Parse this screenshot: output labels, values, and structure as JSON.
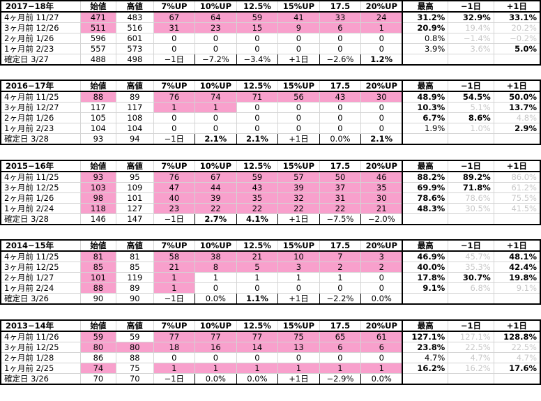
{
  "columns": [
    "始値",
    "高値",
    "7%UP",
    "10%UP",
    "12.5%",
    "15%UP",
    "17.5",
    "20%UP",
    "最高",
    "−1日",
    "+1日"
  ],
  "blocks": [
    {
      "year": "2017−18年",
      "rows": [
        {
          "label": "4ヶ月前",
          "date": "11/27",
          "cells": [
            "471",
            "483",
            "67",
            "64",
            "59",
            "41",
            "33",
            "24",
            "31.2%",
            "32.9%",
            "33.1%"
          ]
        },
        {
          "label": "3ヶ月前",
          "date": "12/26",
          "cells": [
            "511",
            "516",
            "31",
            "23",
            "15",
            "9",
            "6",
            "1",
            "20.9%",
            "19.4%",
            "20.2%"
          ]
        },
        {
          "label": "2ヶ月前",
          "date": "1/26",
          "cells": [
            "596",
            "601",
            "0",
            "0",
            "0",
            "0",
            "0",
            "0",
            "0.8%",
            "−1.4%",
            "−0.2%"
          ]
        },
        {
          "label": "1ヶ月前",
          "date": "2/23",
          "cells": [
            "557",
            "573",
            "0",
            "0",
            "0",
            "0",
            "0",
            "0",
            "3.9%",
            "3.6%",
            "5.0%"
          ]
        },
        {
          "label": "確定日",
          "date": "3/27",
          "cells": [
            "488",
            "498",
            "−1日",
            "−7.2%",
            "−3.4%",
            "+1日",
            "−2.6%",
            "1.2%",
            "",
            "",
            ""
          ]
        }
      ]
    },
    {
      "year": "2016−17年",
      "rows": [
        {
          "label": "4ヶ月前",
          "date": "11/25",
          "cells": [
            "88",
            "89",
            "76",
            "74",
            "71",
            "56",
            "43",
            "30",
            "48.9%",
            "54.5%",
            "50.0%"
          ]
        },
        {
          "label": "3ヶ月前",
          "date": "12/27",
          "cells": [
            "117",
            "117",
            "1",
            "1",
            "0",
            "0",
            "0",
            "0",
            "10.3%",
            "5.1%",
            "13.7%"
          ]
        },
        {
          "label": "2ヶ月前",
          "date": "1/26",
          "cells": [
            "105",
            "108",
            "0",
            "0",
            "0",
            "0",
            "0",
            "0",
            "6.7%",
            "8.6%",
            "4.8%"
          ]
        },
        {
          "label": "1ヶ月前",
          "date": "2/23",
          "cells": [
            "104",
            "104",
            "0",
            "0",
            "0",
            "0",
            "0",
            "0",
            "1.9%",
            "1.0%",
            "2.9%"
          ]
        },
        {
          "label": "確定日",
          "date": "3/28",
          "cells": [
            "93",
            "94",
            "−1日",
            "2.1%",
            "2.1%",
            "+1日",
            "0.0%",
            "2.1%",
            "",
            "",
            ""
          ]
        }
      ]
    },
    {
      "year": "2015−16年",
      "rows": [
        {
          "label": "4ヶ月前",
          "date": "11/25",
          "cells": [
            "93",
            "95",
            "76",
            "67",
            "59",
            "57",
            "50",
            "46",
            "88.2%",
            "89.2%",
            "86.0%"
          ]
        },
        {
          "label": "3ヶ月前",
          "date": "12/25",
          "cells": [
            "103",
            "109",
            "47",
            "44",
            "43",
            "39",
            "37",
            "35",
            "69.9%",
            "71.8%",
            "61.2%"
          ]
        },
        {
          "label": "2ヶ月前",
          "date": "1/26",
          "cells": [
            "98",
            "101",
            "40",
            "39",
            "35",
            "32",
            "31",
            "30",
            "78.6%",
            "78.6%",
            "75.5%"
          ]
        },
        {
          "label": "1ヶ月前",
          "date": "2/24",
          "cells": [
            "118",
            "127",
            "23",
            "22",
            "22",
            "22",
            "22",
            "21",
            "48.3%",
            "30.5%",
            "41.5%"
          ]
        },
        {
          "label": "確定日",
          "date": "3/28",
          "cells": [
            "146",
            "147",
            "−1日",
            "2.7%",
            "4.1%",
            "+1日",
            "−7.5%",
            "−2.0%",
            "",
            "",
            ""
          ]
        }
      ]
    },
    {
      "year": "2014−15年",
      "rows": [
        {
          "label": "4ヶ月前",
          "date": "11/25",
          "cells": [
            "81",
            "81",
            "58",
            "38",
            "21",
            "10",
            "7",
            "3",
            "46.9%",
            "45.7%",
            "48.1%"
          ]
        },
        {
          "label": "3ヶ月前",
          "date": "12/25",
          "cells": [
            "85",
            "85",
            "21",
            "8",
            "5",
            "3",
            "2",
            "2",
            "40.0%",
            "35.3%",
            "42.4%"
          ]
        },
        {
          "label": "2ヶ月前",
          "date": "1/27",
          "cells": [
            "101",
            "119",
            "1",
            "1",
            "1",
            "1",
            "1",
            "0",
            "17.8%",
            "30.7%",
            "19.8%"
          ]
        },
        {
          "label": "1ヶ月前",
          "date": "2/24",
          "cells": [
            "88",
            "89",
            "1",
            "0",
            "0",
            "0",
            "0",
            "0",
            "9.1%",
            "6.8%",
            "9.1%"
          ]
        },
        {
          "label": "確定日",
          "date": "3/26",
          "cells": [
            "90",
            "90",
            "−1日",
            "0.0%",
            "1.1%",
            "+1日",
            "−2.2%",
            "0.0%",
            "",
            "",
            ""
          ]
        }
      ]
    },
    {
      "year": "2013−14年",
      "rows": [
        {
          "label": "4ヶ月前",
          "date": "11/26",
          "cells": [
            "59",
            "59",
            "77",
            "77",
            "77",
            "75",
            "65",
            "61",
            "127.1%",
            "127.1%",
            "128.8%"
          ]
        },
        {
          "label": "3ヶ月前",
          "date": "12/25",
          "cells": [
            "80",
            "80",
            "18",
            "16",
            "14",
            "13",
            "6",
            "6",
            "23.8%",
            "22.5%",
            "22.5%"
          ]
        },
        {
          "label": "2ヶ月前",
          "date": "1/28",
          "cells": [
            "86",
            "88",
            "0",
            "0",
            "0",
            "0",
            "0",
            "0",
            "4.7%",
            "4.7%",
            "4.7%"
          ]
        },
        {
          "label": "1ヶ月前",
          "date": "2/25",
          "cells": [
            "74",
            "75",
            "1",
            "1",
            "1",
            "1",
            "1",
            "1",
            "16.2%",
            "16.2%",
            "17.6%"
          ]
        },
        {
          "label": "確定日",
          "date": "3/26",
          "cells": [
            "70",
            "70",
            "−1日",
            "0.0%",
            "0.0%",
            "+1日",
            "−2.9%",
            "0.0%",
            "",
            "",
            ""
          ]
        }
      ]
    }
  ],
  "colors": {
    "highlight": "#f8a0cc",
    "dim": "#c8c8c8",
    "border": "#000000",
    "grid": "#d4d4d4"
  }
}
